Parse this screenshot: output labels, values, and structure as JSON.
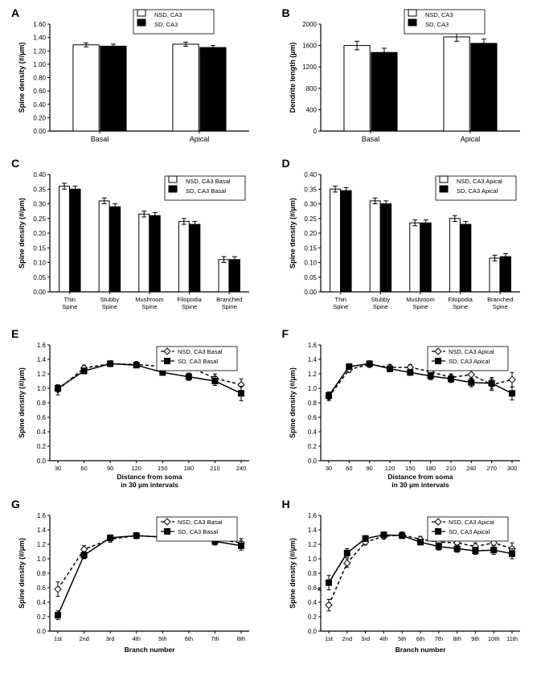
{
  "colors": {
    "nsd_fill": "#ffffff",
    "sd_fill": "#000000",
    "stroke": "#000000",
    "bg": "#ffffff",
    "text": "#000000"
  },
  "fonts": {
    "label": 14,
    "axis_label": 10,
    "tick": 8,
    "legend": 8
  },
  "panels": {
    "A": {
      "type": "bar",
      "ylabel": "Spine density (#/µm)",
      "ylim": [
        0,
        1.6
      ],
      "ytick_step": 0.2,
      "categories": [
        "Basal",
        "Apical"
      ],
      "series": [
        {
          "name": "NSD, CA3",
          "fill": "#ffffff",
          "values": [
            1.29,
            1.3
          ],
          "err": [
            0.03,
            0.03
          ]
        },
        {
          "name": "SD, CA3",
          "fill": "#000000",
          "values": [
            1.27,
            1.25
          ],
          "err": [
            0.03,
            0.03
          ]
        }
      ],
      "bar_width": 0.35
    },
    "B": {
      "type": "bar",
      "ylabel": "Dendrite length (µm)",
      "ylim": [
        0,
        2000
      ],
      "ytick_step": 400,
      "categories": [
        "Basal",
        "Apical"
      ],
      "series": [
        {
          "name": "NSD, CA3",
          "fill": "#ffffff",
          "values": [
            1600,
            1760
          ],
          "err": [
            80,
            80
          ]
        },
        {
          "name": "SD, CA3",
          "fill": "#000000",
          "values": [
            1470,
            1640
          ],
          "err": [
            80,
            80
          ]
        }
      ],
      "bar_width": 0.35
    },
    "C": {
      "type": "bar",
      "ylabel": "Spine density (#/µm)",
      "ylim": [
        0,
        0.4
      ],
      "ytick_step": 0.05,
      "categories": [
        "Thin Spine",
        "Stubby Spine",
        "Mushroom Spine",
        "Filopodia Spine",
        "Branched Spine"
      ],
      "series": [
        {
          "name": "NSD, CA3 Basal",
          "fill": "#ffffff",
          "values": [
            0.36,
            0.31,
            0.265,
            0.24,
            0.11
          ],
          "err": [
            0.01,
            0.01,
            0.01,
            0.01,
            0.01
          ]
        },
        {
          "name": "SD, CA3 Basal",
          "fill": "#000000",
          "values": [
            0.35,
            0.29,
            0.26,
            0.23,
            0.11
          ],
          "err": [
            0.01,
            0.01,
            0.01,
            0.01,
            0.01
          ]
        }
      ],
      "bar_width": 0.35
    },
    "D": {
      "type": "bar",
      "ylabel": "Spine density (#/µm)",
      "ylim": [
        0,
        0.4
      ],
      "ytick_step": 0.05,
      "categories": [
        "Thin Spine",
        "Stubby Spine",
        "Mushroom Spine",
        "Filopodia Spine",
        "Branched Spine"
      ],
      "series": [
        {
          "name": "NSD, CA3 Apical",
          "fill": "#ffffff",
          "values": [
            0.35,
            0.31,
            0.235,
            0.25,
            0.115
          ],
          "err": [
            0.01,
            0.01,
            0.01,
            0.01,
            0.01
          ]
        },
        {
          "name": "SD, CA3 Apical",
          "fill": "#000000",
          "values": [
            0.345,
            0.3,
            0.235,
            0.23,
            0.12
          ],
          "err": [
            0.01,
            0.01,
            0.01,
            0.01,
            0.01
          ]
        }
      ],
      "bar_width": 0.35
    },
    "E": {
      "type": "line",
      "ylabel": "Spine density (#/µm)",
      "ylim": [
        0,
        1.6
      ],
      "ytick_step": 0.2,
      "xlabel": "Distance from soma in 30 µm intervals",
      "x": [
        30,
        60,
        90,
        120,
        150,
        180,
        210,
        240
      ],
      "series": [
        {
          "name": "NSD, CA3 Basal",
          "marker": "diamond",
          "fill": "#ffffff",
          "dash": "4 3",
          "values": [
            0.98,
            1.28,
            1.34,
            1.33,
            1.3,
            1.3,
            1.14,
            1.05
          ],
          "err": [
            0.07,
            0.04,
            0.04,
            0.04,
            0.04,
            0.05,
            0.06,
            0.08
          ]
        },
        {
          "name": "SD, CA3 Basal",
          "marker": "square",
          "fill": "#000000",
          "dash": "",
          "values": [
            1.0,
            1.24,
            1.34,
            1.32,
            1.22,
            1.16,
            1.1,
            0.93
          ],
          "err": [
            0.05,
            0.04,
            0.03,
            0.03,
            0.04,
            0.05,
            0.06,
            0.1
          ]
        }
      ]
    },
    "F": {
      "type": "line",
      "ylabel": "Spine density (#/µm)",
      "ylim": [
        0,
        1.6
      ],
      "ytick_step": 0.2,
      "xlabel": "Distance from soma in 30 µm intervals",
      "x": [
        30,
        60,
        90,
        120,
        150,
        180,
        210,
        240,
        270,
        300
      ],
      "series": [
        {
          "name": "NSD, CA3 Apical",
          "marker": "diamond",
          "fill": "#ffffff",
          "dash": "4 3",
          "values": [
            0.88,
            1.26,
            1.33,
            1.29,
            1.29,
            1.23,
            1.15,
            1.19,
            1.05,
            1.12
          ],
          "err": [
            0.05,
            0.04,
            0.04,
            0.04,
            0.04,
            0.05,
            0.05,
            0.06,
            0.08,
            0.1
          ]
        },
        {
          "name": "SD, CA3 Apical",
          "marker": "square",
          "fill": "#000000",
          "dash": "",
          "values": [
            0.9,
            1.3,
            1.34,
            1.27,
            1.22,
            1.17,
            1.13,
            1.08,
            1.07,
            0.93
          ],
          "err": [
            0.05,
            0.04,
            0.04,
            0.04,
            0.04,
            0.05,
            0.05,
            0.06,
            0.08,
            0.09
          ]
        }
      ]
    },
    "G": {
      "type": "line",
      "ylabel": "Spine density (#/µm)",
      "ylim": [
        0,
        1.6
      ],
      "ytick_step": 0.2,
      "xlabel": "Branch number",
      "x_labels": [
        "1st",
        "2nd",
        "3rd",
        "4th",
        "5th",
        "6th",
        "7th",
        "8th"
      ],
      "series": [
        {
          "name": "NSD, CA3 Basal",
          "marker": "diamond",
          "fill": "#ffffff",
          "dash": "4 3",
          "values": [
            0.58,
            1.13,
            1.27,
            1.32,
            1.3,
            1.35,
            1.27,
            1.22
          ],
          "err": [
            0.1,
            0.05,
            0.04,
            0.04,
            0.04,
            0.05,
            0.05,
            0.06
          ]
        },
        {
          "name": "SD, CA3 Basal",
          "marker": "square",
          "fill": "#000000",
          "dash": "",
          "values": [
            0.22,
            1.05,
            1.29,
            1.32,
            1.3,
            1.33,
            1.24,
            1.18
          ],
          "err": [
            0.06,
            0.05,
            0.04,
            0.04,
            0.04,
            0.05,
            0.05,
            0.06
          ]
        }
      ]
    },
    "H": {
      "type": "line",
      "ylabel": "Spine density (#/µm)",
      "ylim": [
        0,
        1.6
      ],
      "ytick_step": 0.2,
      "xlabel": "Branch number",
      "x_labels": [
        "1st",
        "2nd",
        "3rd",
        "4th",
        "5th",
        "6th",
        "7th",
        "8th",
        "9th",
        "10th",
        "11th"
      ],
      "annot": {
        "text": "*",
        "x_index": 0,
        "y": 0.5
      },
      "series": [
        {
          "name": "NSD, CA3 Apical",
          "marker": "diamond",
          "fill": "#ffffff",
          "dash": "4 3",
          "values": [
            0.36,
            0.94,
            1.23,
            1.31,
            1.33,
            1.27,
            1.23,
            1.22,
            1.17,
            1.22,
            1.14
          ],
          "err": [
            0.08,
            0.06,
            0.04,
            0.04,
            0.04,
            0.04,
            0.05,
            0.05,
            0.05,
            0.06,
            0.08
          ]
        },
        {
          "name": "SD, CA3 Apical",
          "marker": "square",
          "fill": "#000000",
          "dash": "",
          "values": [
            0.67,
            1.08,
            1.28,
            1.33,
            1.32,
            1.23,
            1.17,
            1.14,
            1.11,
            1.12,
            1.07
          ],
          "err": [
            0.1,
            0.06,
            0.04,
            0.04,
            0.04,
            0.04,
            0.05,
            0.05,
            0.05,
            0.06,
            0.07
          ]
        }
      ]
    }
  }
}
